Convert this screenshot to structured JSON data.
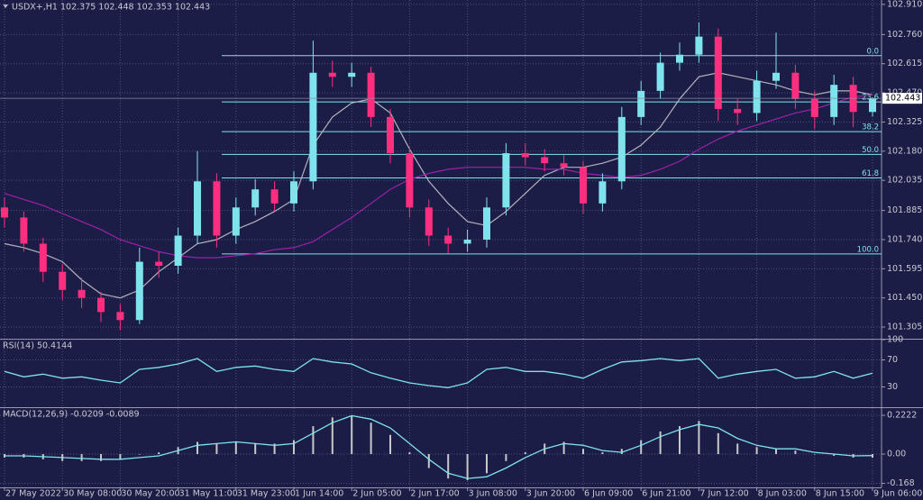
{
  "chart_data": [
    {
      "type": "candlestick",
      "title": "USDX+,H1  102.375 102.448 102.353 102.443",
      "categories": [
        "27 May 2022",
        null,
        null,
        "30 May 08:00",
        null,
        null,
        "30 May 20:00",
        null,
        null,
        "31 May 11:00",
        null,
        null,
        "31 May 23:00",
        null,
        null,
        "1 Jun 14:00",
        null,
        null,
        "2 Jun 05:00",
        null,
        null,
        "2 Jun 17:00",
        null,
        null,
        "3 Jun 08:00",
        null,
        null,
        "3 Jun 20:00",
        null,
        null,
        "6 Jun 09:00",
        null,
        null,
        "6 Jun 21:00",
        null,
        null,
        "7 Jun 12:00",
        null,
        null,
        "8 Jun 03:00",
        null,
        null,
        "8 Jun 15:00",
        null,
        null,
        "9 Jun 06:00"
      ],
      "open": [
        101.9,
        101.85,
        101.72,
        101.58,
        101.49,
        101.45,
        101.38,
        101.34,
        101.63,
        101.61,
        101.76,
        102.03,
        101.76,
        101.9,
        101.99,
        101.92,
        102.03,
        102.57,
        102.55,
        102.57,
        102.35,
        102.17,
        101.9,
        101.76,
        101.72,
        101.74,
        101.9,
        102.17,
        102.15,
        102.12,
        102.1,
        101.92,
        102.03,
        102.35,
        102.48,
        102.62,
        102.66,
        102.75,
        102.39,
        102.37,
        102.53,
        102.57,
        102.44,
        102.35,
        102.51,
        102.375
      ],
      "high": [
        101.95,
        101.88,
        101.75,
        101.62,
        101.55,
        101.48,
        101.42,
        101.7,
        101.68,
        101.8,
        102.18,
        102.07,
        101.95,
        102.04,
        102.03,
        102.08,
        102.73,
        102.63,
        102.62,
        102.6,
        102.39,
        102.2,
        101.94,
        101.8,
        101.79,
        101.95,
        102.22,
        102.22,
        102.19,
        102.16,
        102.13,
        102.07,
        102.4,
        102.53,
        102.67,
        102.72,
        102.82,
        102.79,
        102.44,
        102.58,
        102.77,
        102.61,
        102.48,
        102.56,
        102.55,
        102.448
      ],
      "low": [
        101.8,
        101.68,
        101.53,
        101.44,
        101.4,
        101.33,
        101.29,
        101.32,
        101.55,
        101.57,
        101.72,
        101.7,
        101.72,
        101.86,
        101.88,
        101.88,
        101.99,
        102.5,
        102.5,
        102.3,
        102.12,
        101.85,
        101.71,
        101.67,
        101.68,
        101.7,
        101.86,
        102.11,
        102.08,
        102.06,
        101.87,
        101.88,
        101.99,
        102.31,
        102.44,
        102.58,
        102.62,
        102.33,
        102.31,
        102.33,
        102.49,
        102.39,
        102.29,
        102.31,
        102.3,
        102.353
      ],
      "close": [
        101.85,
        101.72,
        101.58,
        101.49,
        101.45,
        101.38,
        101.34,
        101.63,
        101.61,
        101.76,
        102.03,
        101.76,
        101.9,
        101.99,
        101.92,
        102.03,
        102.57,
        102.55,
        102.57,
        102.35,
        102.17,
        101.9,
        101.76,
        101.72,
        101.74,
        101.9,
        102.17,
        102.15,
        102.12,
        102.1,
        101.92,
        102.03,
        102.35,
        102.48,
        102.62,
        102.66,
        102.75,
        102.39,
        102.37,
        102.53,
        102.57,
        102.44,
        102.35,
        102.51,
        102.375,
        102.443
      ],
      "up_color": "#7fe3ee",
      "down_color": "#ff2e7e",
      "overlays": [
        {
          "color": "#b4b4bc",
          "values": [
            101.72,
            101.7,
            101.67,
            101.63,
            101.54,
            101.47,
            101.45,
            101.49,
            101.58,
            101.65,
            101.72,
            101.74,
            101.79,
            101.83,
            101.88,
            101.94,
            102.21,
            102.35,
            102.42,
            102.44,
            102.37,
            102.19,
            102.03,
            101.92,
            101.83,
            101.81,
            101.88,
            101.97,
            102.06,
            102.1,
            102.1,
            102.12,
            102.15,
            102.21,
            102.3,
            102.44,
            102.55,
            102.57,
            102.55,
            102.53,
            102.51,
            102.48,
            102.46,
            102.48,
            102.48,
            102.46
          ]
        },
        {
          "color": "#a020a8",
          "values": [
            101.97,
            101.94,
            101.91,
            101.87,
            101.83,
            101.79,
            101.74,
            101.71,
            101.68,
            101.66,
            101.65,
            101.65,
            101.66,
            101.67,
            101.69,
            101.7,
            101.73,
            101.79,
            101.85,
            101.92,
            101.99,
            102.04,
            102.07,
            102.09,
            102.1,
            102.1,
            102.1,
            102.1,
            102.09,
            102.09,
            102.07,
            102.06,
            102.05,
            102.06,
            102.09,
            102.13,
            102.19,
            102.24,
            102.28,
            102.31,
            102.34,
            102.37,
            102.39,
            102.42,
            102.45,
            102.46
          ]
        }
      ],
      "fibonacci": [
        {
          "label": "0.0",
          "value": 102.655
        },
        {
          "label": "23.6",
          "value": 102.425
        },
        {
          "label": "38.2",
          "value": 102.277
        },
        {
          "label": "50.0",
          "value": 102.164
        },
        {
          "label": "61.8",
          "value": 102.047
        },
        {
          "label": "100.0",
          "value": 101.669
        }
      ],
      "fib_color": "#7fe3ee",
      "ylim": [
        101.247,
        102.932
      ],
      "yticks": [
        {
          "value": 102.91,
          "label": "102.910"
        },
        {
          "value": 102.76,
          "label": "102.760"
        },
        102.615,
        {
          "value": 102.47,
          "label": "102.470"
        },
        102.325,
        {
          "value": 102.18,
          "label": "102.180"
        },
        102.035,
        101.885,
        {
          "value": 101.74,
          "label": "101.740"
        },
        101.595,
        {
          "value": 101.45,
          "label": "101.450"
        },
        101.305
      ],
      "grid": true
    },
    {
      "type": "line",
      "title": "RSI(14) 50.4144",
      "values": [
        53,
        45,
        49,
        43,
        45,
        40,
        36,
        56,
        59,
        64,
        72,
        53,
        59,
        61,
        56,
        53,
        72,
        67,
        64,
        51,
        43,
        36,
        32,
        29,
        36,
        56,
        59,
        53,
        53,
        49,
        43,
        56,
        67,
        69,
        72,
        69,
        72,
        43,
        49,
        53,
        56,
        43,
        45,
        53,
        43,
        50.41
      ],
      "color": "#7fe3ee",
      "ylim": [
        0,
        100
      ],
      "yticks": [
        100,
        70,
        30
      ],
      "grid": true
    },
    {
      "type": "macd",
      "title": "MACD(12,26,9) -0.0209 -0.0089",
      "histogram": [
        -0.02,
        -0.02,
        -0.03,
        -0.04,
        -0.04,
        -0.04,
        -0.03,
        0.0,
        0.01,
        0.04,
        0.07,
        0.06,
        0.07,
        0.06,
        0.06,
        0.08,
        0.16,
        0.21,
        0.22,
        0.18,
        0.11,
        0.01,
        -0.08,
        -0.14,
        -0.15,
        -0.11,
        -0.04,
        0.01,
        0.06,
        0.07,
        0.03,
        0.01,
        0.03,
        0.08,
        0.13,
        0.16,
        0.19,
        0.12,
        0.06,
        0.04,
        0.03,
        0.02,
        0.0,
        -0.01,
        -0.02,
        -0.0209
      ],
      "signal": [
        -0.01,
        -0.01,
        -0.015,
        -0.02,
        -0.025,
        -0.03,
        -0.03,
        -0.02,
        -0.01,
        0.02,
        0.05,
        0.06,
        0.07,
        0.06,
        0.05,
        0.06,
        0.12,
        0.18,
        0.22,
        0.2,
        0.15,
        0.06,
        -0.03,
        -0.11,
        -0.14,
        -0.13,
        -0.08,
        -0.02,
        0.03,
        0.06,
        0.05,
        0.02,
        0.01,
        0.05,
        0.1,
        0.14,
        0.17,
        0.15,
        0.09,
        0.05,
        0.03,
        0.03,
        0.01,
        0.0,
        -0.01,
        -0.0089
      ],
      "hist_color": "#c8c8c8",
      "color": "#7fe3ee",
      "ylim": [
        -0.191,
        0.2635
      ],
      "yticks": [
        0.2222,
        {
          "value": 0,
          "label": "0.00"
        },
        -0.168
      ],
      "grid": true
    }
  ]
}
